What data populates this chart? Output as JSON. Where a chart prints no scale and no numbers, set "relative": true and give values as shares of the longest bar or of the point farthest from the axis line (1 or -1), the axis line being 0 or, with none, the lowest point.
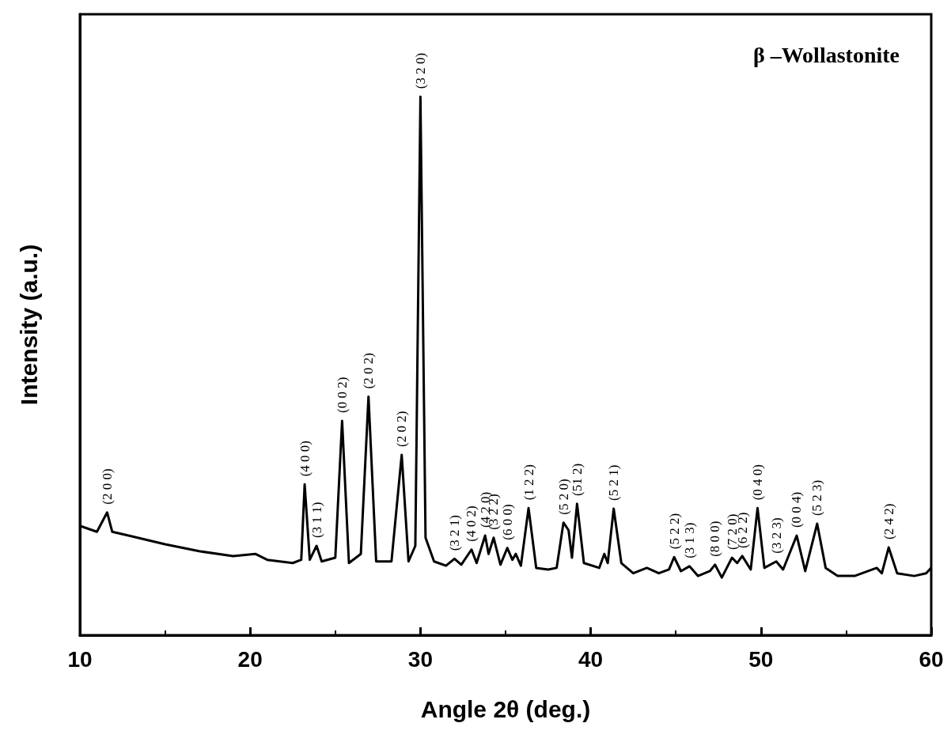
{
  "chart_data": {
    "type": "line",
    "title": "β –Wollastonite",
    "xlabel": "Angle 2θ (deg.)",
    "ylabel": "Intensity (a.u.)",
    "relative": true,
    "color": "#000000",
    "marker": "none",
    "line_style": "solid",
    "grid": false,
    "tick_labels": "x",
    "xlim": [
      10,
      60
    ],
    "xticks": [
      10,
      20,
      30,
      40,
      50,
      60
    ],
    "x": [
      10,
      11,
      11.6,
      11.9,
      13,
      15,
      17,
      19,
      20.3,
      21,
      22.5,
      23,
      23.2,
      23.5,
      23.9,
      24.2,
      25,
      25.4,
      25.8,
      26.5,
      26.95,
      27.4,
      28.3,
      28.9,
      29.3,
      29.7,
      30,
      30.3,
      30.8,
      31.5,
      32,
      32.4,
      33,
      33.3,
      33.8,
      34,
      34.3,
      34.7,
      35.1,
      35.4,
      35.6,
      35.9,
      36.35,
      36.8,
      37.5,
      38,
      38.4,
      38.7,
      38.9,
      39.2,
      39.6,
      40.5,
      40.8,
      41,
      41.35,
      41.8,
      42.5,
      43.3,
      44,
      44.6,
      44.9,
      45.3,
      45.8,
      46.3,
      47,
      47.3,
      47.7,
      48.3,
      48.6,
      48.9,
      49.4,
      49.8,
      50.2,
      50.9,
      51.3,
      52.1,
      52.6,
      53.3,
      53.8,
      54.5,
      55.5,
      56.8,
      57.1,
      57.5,
      58,
      59,
      59.7,
      60
    ],
    "values": [
      0.203,
      0.192,
      0.228,
      0.192,
      0.184,
      0.169,
      0.156,
      0.147,
      0.151,
      0.14,
      0.134,
      0.14,
      0.28,
      0.14,
      0.166,
      0.137,
      0.144,
      0.398,
      0.134,
      0.151,
      0.443,
      0.137,
      0.137,
      0.335,
      0.137,
      0.166,
      1,
      0.181,
      0.137,
      0.129,
      0.142,
      0.131,
      0.159,
      0.134,
      0.185,
      0.151,
      0.181,
      0.131,
      0.162,
      0.14,
      0.151,
      0.129,
      0.236,
      0.125,
      0.122,
      0.125,
      0.209,
      0.195,
      0.144,
      0.244,
      0.134,
      0.125,
      0.151,
      0.134,
      0.235,
      0.134,
      0.115,
      0.125,
      0.115,
      0.122,
      0.145,
      0.119,
      0.128,
      0.11,
      0.119,
      0.131,
      0.107,
      0.144,
      0.134,
      0.147,
      0.122,
      0.236,
      0.125,
      0.137,
      0.122,
      0.185,
      0.119,
      0.207,
      0.125,
      0.11,
      0.11,
      0.125,
      0.115,
      0.163,
      0.115,
      0.11,
      0.115,
      0.125
    ],
    "annotations": [
      {
        "text": "(2 0 0)",
        "x": 11.6,
        "y": 0.228
      },
      {
        "text": "(4 0 0)",
        "x": 23.2,
        "y": 0.28
      },
      {
        "text": "(3 1 1)",
        "x": 23.9,
        "y": 0.166
      },
      {
        "text": "(0 0 2)",
        "x": 25.4,
        "y": 0.398
      },
      {
        "text": "(2 0 2)",
        "x": 26.95,
        "y": 0.443
      },
      {
        "text": "(2 0 2)",
        "x": 28.9,
        "y": 0.335
      },
      {
        "text": "(3 2 0)",
        "x": 30,
        "y": 1
      },
      {
        "text": "(3 2 1)",
        "x": 32,
        "y": 0.142
      },
      {
        "text": "(4 0 2)",
        "x": 33,
        "y": 0.159
      },
      {
        "text": "(4 2 0)",
        "x": 33.8,
        "y": 0.185
      },
      {
        "text": "(3 2 2)",
        "x": 34.3,
        "y": 0.181
      },
      {
        "text": "(6 0 0)",
        "x": 35.1,
        "y": 0.162
      },
      {
        "text": "(1 2 2)",
        "x": 36.35,
        "y": 0.236
      },
      {
        "text": "(5 2 0)",
        "x": 38.4,
        "y": 0.209
      },
      {
        "text": "(51 2)",
        "x": 39.2,
        "y": 0.244
      },
      {
        "text": "(5 2 1)",
        "x": 41.35,
        "y": 0.235
      },
      {
        "text": "(5 2 2)",
        "x": 44.9,
        "y": 0.145
      },
      {
        "text": "(3 1 3)",
        "x": 45.8,
        "y": 0.128
      },
      {
        "text": "(8 0 0)",
        "x": 47.3,
        "y": 0.131
      },
      {
        "text": "(7 2 0)",
        "x": 48.3,
        "y": 0.144
      },
      {
        "text": "(6 2 2)",
        "x": 48.9,
        "y": 0.147
      },
      {
        "text": "(0 4 0)",
        "x": 49.8,
        "y": 0.236
      },
      {
        "text": "(3 2 3)",
        "x": 50.9,
        "y": 0.137
      },
      {
        "text": "(0 0 4)",
        "x": 52.1,
        "y": 0.185
      },
      {
        "text": "(5 2 3)",
        "x": 53.3,
        "y": 0.207
      },
      {
        "text": "(2 4 2)",
        "x": 57.5,
        "y": 0.163
      }
    ]
  }
}
